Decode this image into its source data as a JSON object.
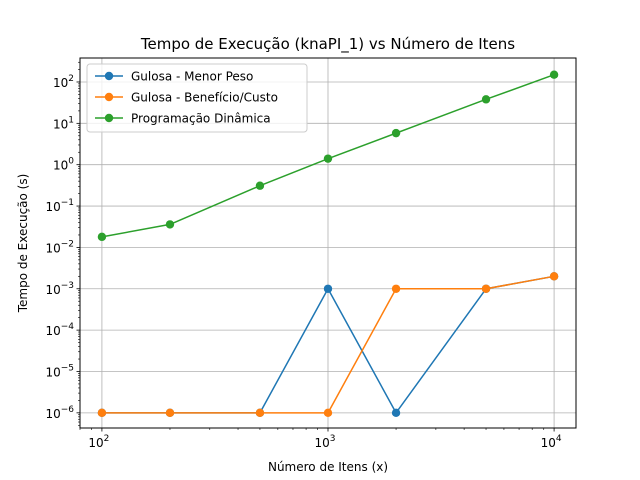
{
  "chart_data": {
    "type": "line",
    "title": "Tempo de Execução (knaPI_1) vs Número de Itens",
    "xlabel": "Número de Itens (x)",
    "ylabel": "Tempo de Execução (s)",
    "xscale": "log",
    "yscale": "log",
    "xlim": [
      80,
      12500
    ],
    "ylim": [
      4.3e-07,
      380
    ],
    "grid": true,
    "legend_position": "top-left",
    "x": [
      100,
      200,
      500,
      1000,
      2000,
      5000,
      10000
    ],
    "xticks": [
      {
        "value": 100,
        "base": "10",
        "exp": "2"
      },
      {
        "value": 1000,
        "base": "10",
        "exp": "3"
      },
      {
        "value": 10000,
        "base": "10",
        "exp": "4"
      }
    ],
    "yticks": [
      {
        "value": 1e-06,
        "base": "10",
        "exp": "−6"
      },
      {
        "value": 1e-05,
        "base": "10",
        "exp": "−5"
      },
      {
        "value": 0.0001,
        "base": "10",
        "exp": "−4"
      },
      {
        "value": 0.001,
        "base": "10",
        "exp": "−3"
      },
      {
        "value": 0.01,
        "base": "10",
        "exp": "−2"
      },
      {
        "value": 0.1,
        "base": "10",
        "exp": "−1"
      },
      {
        "value": 1,
        "base": "10",
        "exp": "0"
      },
      {
        "value": 10,
        "base": "10",
        "exp": "1"
      },
      {
        "value": 100,
        "base": "10",
        "exp": "2"
      }
    ],
    "series": [
      {
        "name": "Gulosa - Menor Peso",
        "color": "#1f77b4",
        "values": [
          1e-06,
          1e-06,
          1e-06,
          0.001,
          1e-06,
          0.001,
          0.002
        ]
      },
      {
        "name": "Gulosa - Benefício/Custo",
        "color": "#ff7f0e",
        "values": [
          1e-06,
          1e-06,
          1e-06,
          1e-06,
          0.001,
          0.001,
          0.002
        ]
      },
      {
        "name": "Programação Dinâmica",
        "color": "#2ca02c",
        "values": [
          0.018,
          0.036,
          0.31,
          1.4,
          5.8,
          38,
          150
        ]
      }
    ]
  }
}
